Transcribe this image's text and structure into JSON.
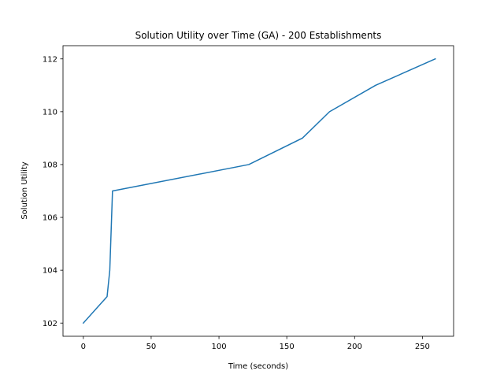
{
  "chart_data": {
    "type": "line",
    "title": "Solution Utility over Time (GA) - 200 Establishments",
    "xlabel": "Time (seconds)",
    "ylabel": "Solution Utility",
    "xlim": [
      -15,
      273
    ],
    "ylim": [
      101.5,
      112.5
    ],
    "xticks": [
      0,
      50,
      100,
      150,
      200,
      250
    ],
    "yticks": [
      102,
      104,
      106,
      108,
      110,
      112
    ],
    "grid": false,
    "series": [
      {
        "color": "#1f77b4",
        "x": [
          0,
          17.5,
          19.5,
          21.5,
          122,
          161.5,
          181.5,
          215.5,
          259.5
        ],
        "y": [
          102,
          103,
          104,
          107,
          108,
          109,
          110,
          111,
          112
        ]
      }
    ]
  }
}
